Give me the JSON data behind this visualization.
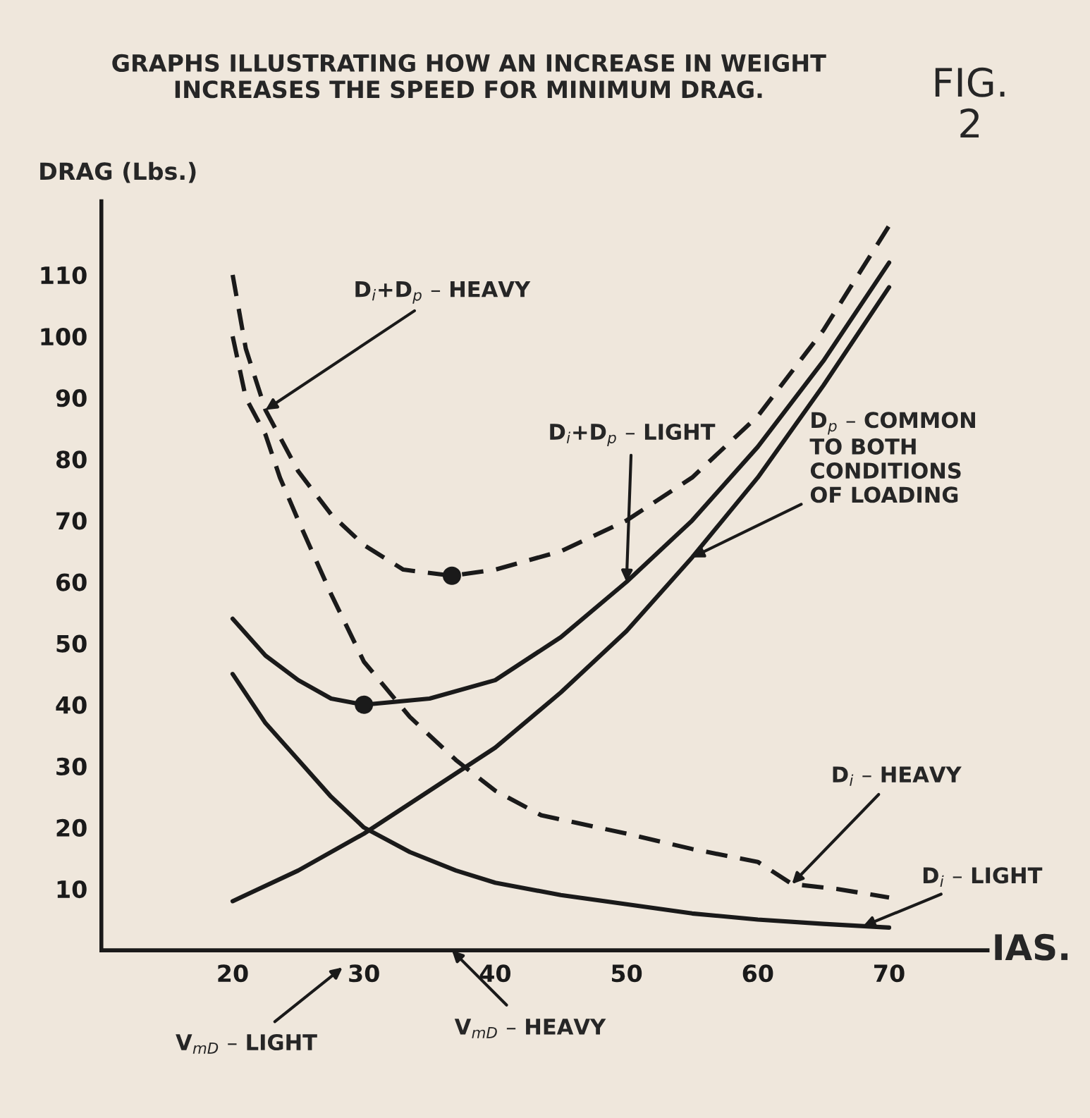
{
  "chart_data": {
    "type": "line",
    "title": "GRAPHS ILLUSTRATING HOW AN INCREASE IN WEIGHT INCREASES THE SPEED FOR MINIMUM DRAG.",
    "xlabel": "IAS.",
    "ylabel": "DRAG (Lbs.)",
    "xlim": [
      10,
      77.5
    ],
    "ylim": [
      0,
      122
    ],
    "xticks": [
      20,
      30,
      40,
      50,
      60,
      70
    ],
    "yticks": [
      10,
      20,
      30,
      40,
      50,
      60,
      70,
      80,
      90,
      100,
      110
    ],
    "grid": false,
    "legend": false,
    "marker": "none",
    "series": [
      {
        "color": "#1a1a1a",
        "line_style": "solid",
        "x": [
          20,
          25,
          30,
          35,
          40,
          45,
          50,
          55,
          60,
          65,
          70
        ],
        "values": [
          8,
          13,
          19,
          26,
          33,
          42,
          52,
          64,
          77,
          92,
          108
        ]
      },
      {
        "color": "#1a1a1a",
        "line_style": "solid",
        "x": [
          20,
          22.5,
          25,
          27.5,
          30,
          35,
          40,
          45,
          50,
          55,
          60,
          65,
          70
        ],
        "values": [
          54,
          48,
          44,
          41,
          40,
          41,
          44,
          51,
          60,
          70,
          82,
          96,
          112
        ]
      },
      {
        "color": "#1a1a1a",
        "line_style": "dashed",
        "x": [
          20,
          21,
          22.5,
          25,
          27.5,
          30,
          33,
          36.7,
          40,
          45,
          50,
          55,
          60,
          65,
          70
        ],
        "values": [
          110,
          98,
          88,
          78,
          71,
          66,
          62,
          61,
          62,
          65,
          70,
          77,
          87,
          101,
          118
        ]
      },
      {
        "color": "#1a1a1a",
        "line_style": "dashed",
        "x": [
          20,
          21,
          22.5,
          23.6,
          25,
          27.5,
          30,
          33.5,
          37,
          40,
          43.5,
          50,
          55,
          60,
          62.6,
          66,
          70
        ],
        "values": [
          100,
          90,
          84,
          77,
          70,
          58,
          47,
          38,
          31,
          26,
          22,
          19,
          16.5,
          14.4,
          10.8,
          10,
          8.6
        ]
      },
      {
        "color": "#1a1a1a",
        "line_style": "solid",
        "x": [
          20,
          22.5,
          25,
          27.5,
          30,
          33.5,
          37,
          40,
          45,
          50,
          55,
          60,
          65,
          70
        ],
        "values": [
          45,
          37,
          31,
          25,
          20,
          16,
          13,
          11,
          9,
          7.5,
          6,
          5,
          4.3,
          3.7
        ]
      },
      {
        "type": "scatter",
        "color": "#1a1a1a",
        "marker": "circle",
        "x": [
          30,
          36.7
        ],
        "values": [
          40,
          61
        ]
      }
    ],
    "annotations": [
      {
        "text": "D$_{i}$+D$_{p}$ – HEAVY",
        "x": 22.5,
        "y": 88
      },
      {
        "text": "D$_{i}$+D$_{p}$ – LIGHT",
        "x": 50,
        "y": 60
      },
      {
        "text": "D$_{p}$ – COMMON\nTO BOTH\nCONDITIONS\nOF LOADING",
        "x": 55,
        "y": 64
      },
      {
        "text": "D$_{i}$ – HEAVY",
        "x": 62.6,
        "y": 10.8
      },
      {
        "text": "D$_{i}$ – LIGHT",
        "x": 68,
        "y": 3.9
      },
      "V$_{mD}$ – LIGHT",
      "V$_{mD}$ – HEAVY",
      "FIG.\n2"
    ]
  }
}
